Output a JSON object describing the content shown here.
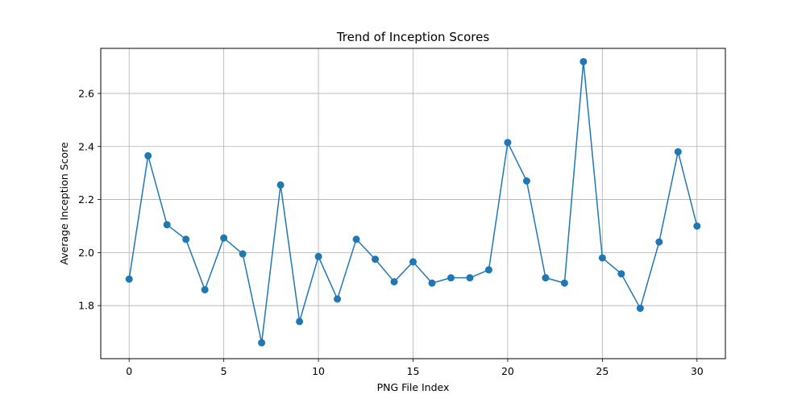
{
  "chart_data": {
    "type": "line",
    "title": "Trend of Inception Scores",
    "xlabel": "PNG File Index",
    "ylabel": "Average Inception Score",
    "x": [
      0,
      1,
      2,
      3,
      4,
      5,
      6,
      7,
      8,
      9,
      10,
      11,
      12,
      13,
      14,
      15,
      16,
      17,
      18,
      19,
      20,
      21,
      22,
      23,
      24,
      25,
      26,
      27,
      28,
      29,
      30
    ],
    "series": [
      {
        "values": [
          1.9,
          2.365,
          2.105,
          2.05,
          1.86,
          2.055,
          1.995,
          1.66,
          2.255,
          1.74,
          1.985,
          1.825,
          2.05,
          1.975,
          1.89,
          1.965,
          1.885,
          1.905,
          1.905,
          1.935,
          2.415,
          2.27,
          1.905,
          1.885,
          2.72,
          1.98,
          1.92,
          1.79,
          2.04,
          2.38,
          2.1
        ],
        "color": "#1f77b4",
        "marker": "circle"
      }
    ],
    "xlim": [
      -1.5,
      31.5
    ],
    "ylim": [
      1.6,
      2.77
    ],
    "xticks": [
      0,
      5,
      10,
      15,
      20,
      25,
      30
    ],
    "yticks": [
      1.8,
      2.0,
      2.2,
      2.4,
      2.6
    ],
    "xtick_labels": [
      "0",
      "5",
      "10",
      "15",
      "20",
      "25",
      "30"
    ],
    "ytick_labels": [
      "1.8",
      "2.0",
      "2.2",
      "2.4",
      "2.6"
    ],
    "grid": true
  }
}
